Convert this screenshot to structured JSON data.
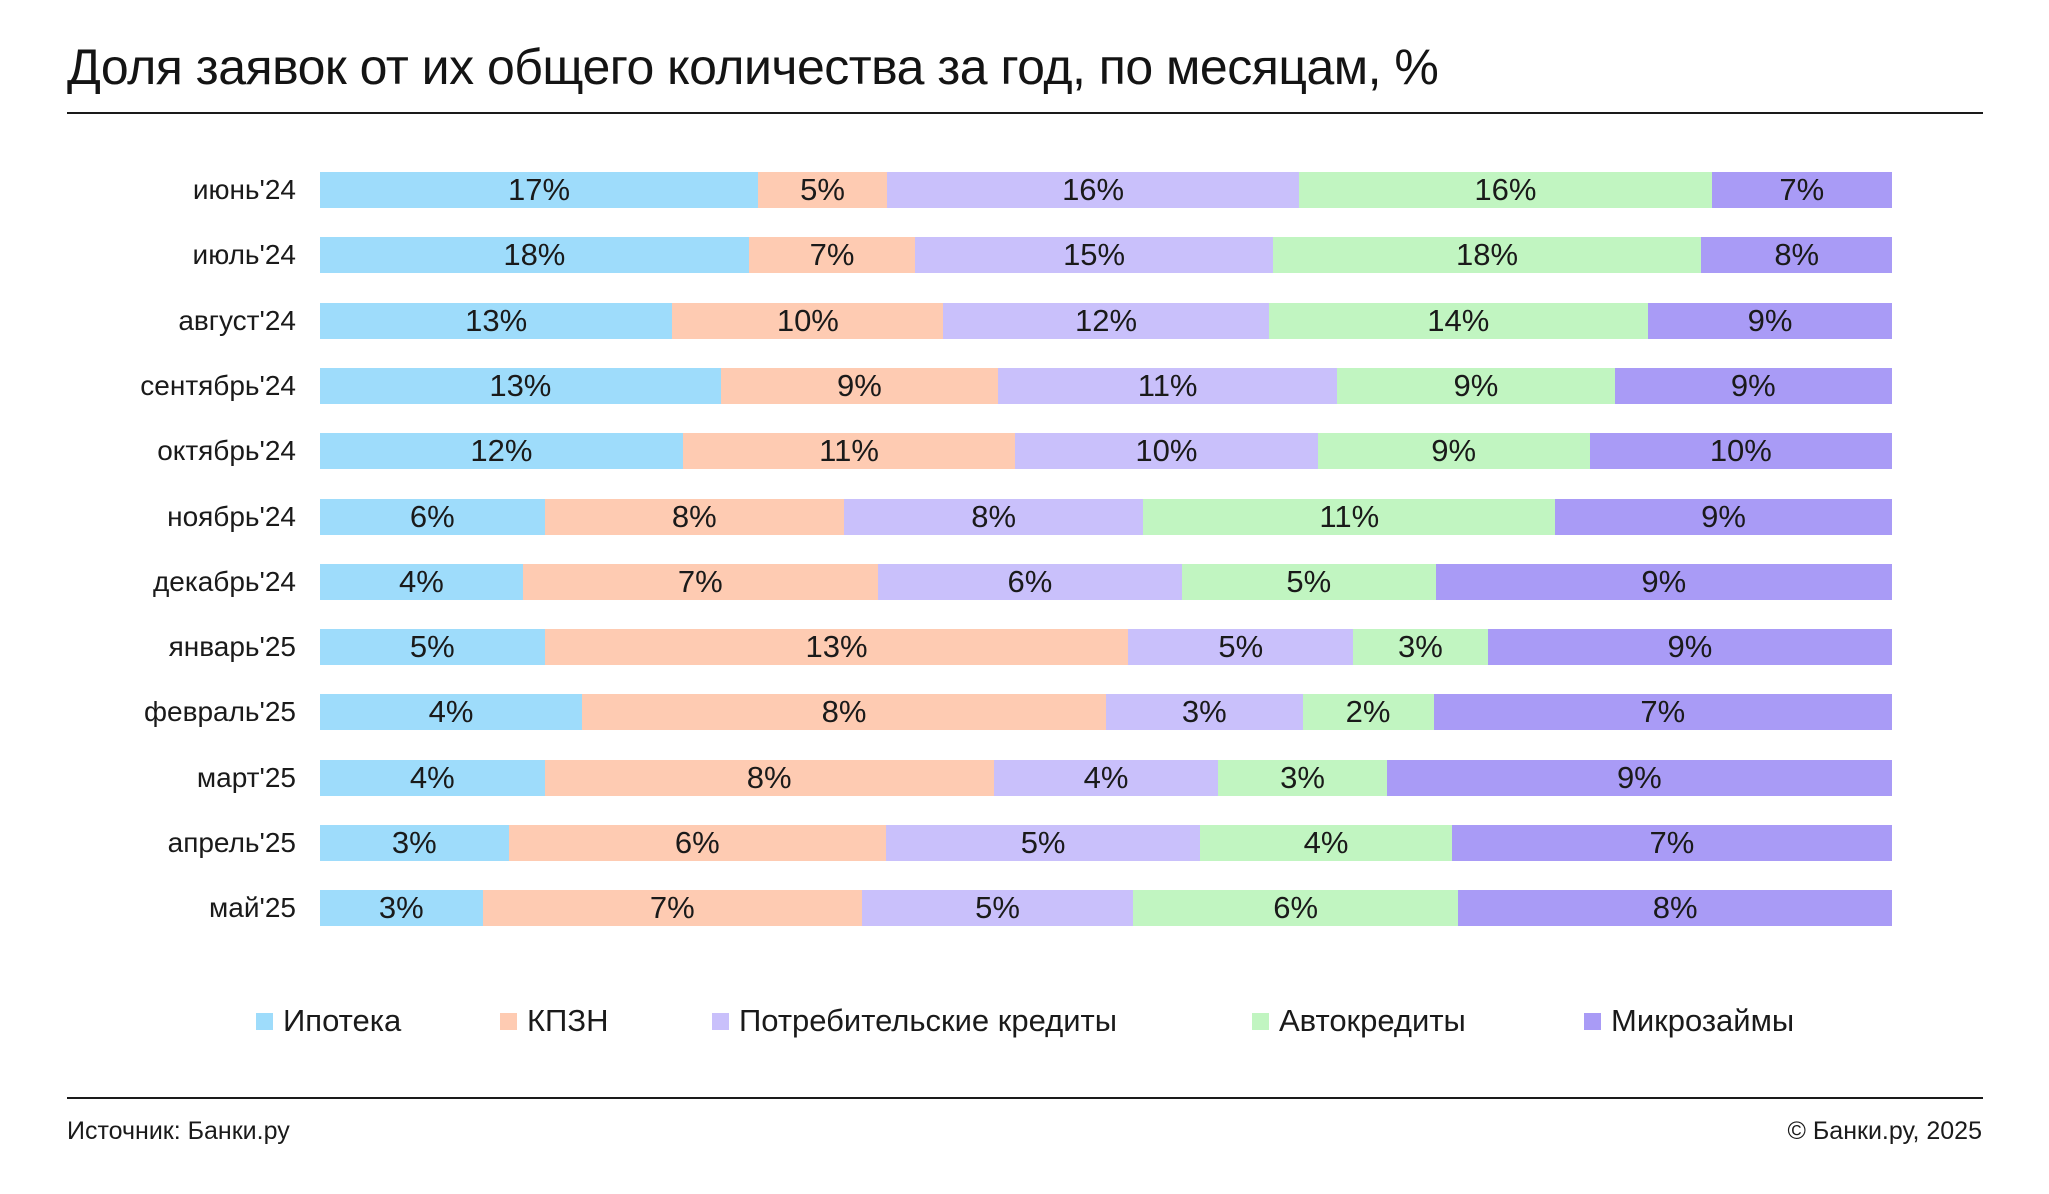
{
  "header": {
    "title": "Доля заявок от их общего количества за год, по месяцам, %"
  },
  "footer": {
    "source": "Источник: Банки.ру",
    "copyright": "© Банки.ру, 2025"
  },
  "chart_data": {
    "type": "bar",
    "orientation": "horizontal",
    "stacked": true,
    "title": "Доля заявок от их общего количества за год, по месяцам, %",
    "xlabel": "",
    "ylabel": "",
    "grid": false,
    "legend_placement": "bottom",
    "categories": [
      "июнь'24",
      "июль'24",
      "август'24",
      "сентябрь'24",
      "октябрь'24",
      "ноябрь'24",
      "декабрь'24",
      "январь'25",
      "февраль'25",
      "март'25",
      "апрель'25",
      "май'25"
    ],
    "series": [
      {
        "name": "Ипотека",
        "color": "#9edcfb",
        "values": [
          17,
          18,
          13,
          13,
          12,
          6,
          4,
          5,
          4,
          4,
          3,
          3
        ]
      },
      {
        "name": "КПЗН",
        "color": "#fecbb2",
        "values": [
          5,
          7,
          10,
          9,
          11,
          8,
          7,
          13,
          8,
          8,
          6,
          7
        ]
      },
      {
        "name": "Потребительские кредиты",
        "color": "#c9c0fb",
        "values": [
          16,
          15,
          12,
          11,
          10,
          8,
          6,
          5,
          3,
          4,
          5,
          5
        ]
      },
      {
        "name": "Автокредиты",
        "color": "#c1f5c1",
        "values": [
          16,
          18,
          14,
          9,
          9,
          11,
          5,
          3,
          2,
          3,
          4,
          6
        ]
      },
      {
        "name": "Микрозаймы",
        "color": "#a99bf6",
        "values": [
          7,
          8,
          9,
          9,
          10,
          9,
          9,
          9,
          7,
          9,
          7,
          8
        ]
      }
    ],
    "value_suffix": "%"
  }
}
